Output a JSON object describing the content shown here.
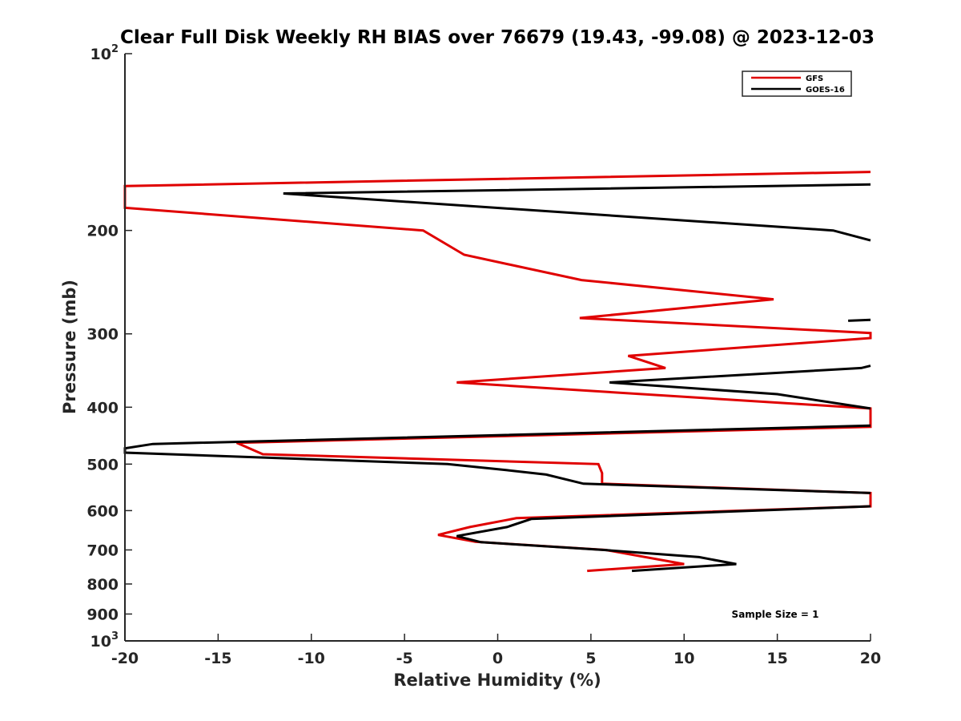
{
  "chart_data": {
    "type": "line",
    "title": "Clear Full Disk Weekly RH BIAS over 76679 (19.43, -99.08) @ 2023-12-03",
    "xlabel": "Relative Humidity (%)",
    "ylabel": "Pressure (mb)",
    "xlim": [
      -20,
      20
    ],
    "ylim": [
      100,
      1000
    ],
    "y_scale": "log",
    "y_reversed": true,
    "grid": false,
    "legend_position": "top-right",
    "x_ticks": [
      -20,
      -15,
      -10,
      -5,
      0,
      5,
      10,
      15,
      20
    ],
    "x_tick_labels": [
      "-20",
      "-15",
      "-10",
      "-5",
      "0",
      "5",
      "10",
      "15",
      "20"
    ],
    "y_ticks": [
      {
        "value": 100,
        "base": "10",
        "exp": "2"
      },
      {
        "value": 200,
        "label": "200"
      },
      {
        "value": 300,
        "label": "300"
      },
      {
        "value": 400,
        "label": "400"
      },
      {
        "value": 500,
        "label": "500"
      },
      {
        "value": 600,
        "label": "600"
      },
      {
        "value": 700,
        "label": "700"
      },
      {
        "value": 800,
        "label": "800"
      },
      {
        "value": 900,
        "label": "900"
      },
      {
        "value": 1000,
        "base": "10",
        "exp": "3"
      }
    ],
    "annotation": "Sample Size = 1",
    "series": [
      {
        "name": "GFS",
        "color": "#e00000",
        "segments": [
          [
            [
              20,
              159
            ],
            [
              -20,
              168
            ],
            [
              -20,
              183
            ],
            [
              -4,
              200
            ],
            [
              -1.8,
              220
            ],
            [
              4.5,
              243
            ],
            [
              14.8,
              262
            ],
            [
              4.4,
              282
            ],
            [
              20,
              299
            ],
            [
              20,
              305
            ],
            [
              7,
              327
            ],
            [
              9,
              343
            ],
            [
              -2.2,
              363
            ],
            [
              20,
              402
            ],
            [
              20,
              432
            ],
            [
              -14,
              460
            ],
            [
              -12.6,
              481
            ],
            [
              5.4,
              500
            ],
            [
              5.6,
              518
            ],
            [
              5.6,
              540
            ],
            [
              20,
              560
            ],
            [
              20,
              590
            ],
            [
              1,
              618
            ],
            [
              -1.5,
              640
            ],
            [
              -3.2,
              660
            ],
            [
              -1.2,
              678
            ],
            [
              5.8,
              700
            ],
            [
              10,
              740
            ],
            [
              4.8,
              760
            ]
          ]
        ]
      },
      {
        "name": "GOES-16",
        "color": "#000000",
        "segments": [
          [
            [
              20,
              167
            ],
            [
              -11.5,
              173
            ],
            [
              18,
              200
            ],
            [
              20,
              208
            ]
          ],
          [
            [
              18.8,
              285
            ],
            [
              20,
              284
            ]
          ],
          [
            [
              20,
              340
            ],
            [
              19.5,
              343
            ],
            [
              6,
              363
            ],
            [
              15,
              380
            ],
            [
              20,
              402
            ]
          ],
          [
            [
              20,
              430
            ],
            [
              -18.5,
              462
            ],
            [
              -20,
              470
            ],
            [
              -20,
              478
            ],
            [
              -2.7,
              500
            ],
            [
              0.5,
              512
            ],
            [
              2.6,
              521
            ],
            [
              4.6,
              540
            ],
            [
              20,
              560
            ]
          ],
          [
            [
              20,
              590
            ],
            [
              1.8,
              620
            ],
            [
              0.5,
              640
            ],
            [
              -2.2,
              663
            ],
            [
              -0.9,
              679
            ],
            [
              5.7,
              700
            ],
            [
              10.8,
              720
            ],
            [
              12.8,
              740
            ],
            [
              7.2,
              760
            ]
          ]
        ]
      }
    ]
  }
}
